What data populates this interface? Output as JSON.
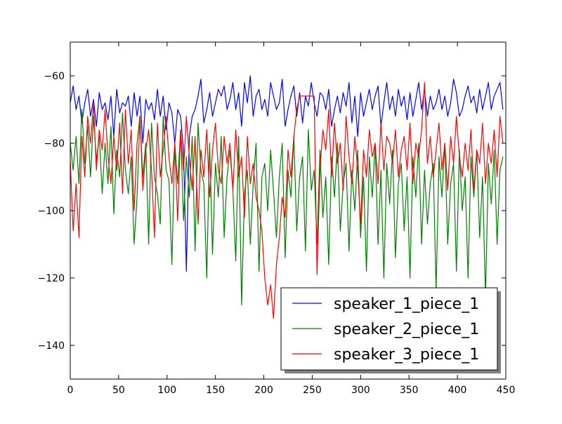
{
  "chart_data": {
    "type": "line",
    "title": "",
    "xlabel": "",
    "ylabel": "",
    "xlim": [
      0,
      450
    ],
    "ylim": [
      -150,
      -50
    ],
    "xticks": [
      0,
      50,
      100,
      150,
      200,
      250,
      300,
      350,
      400,
      450
    ],
    "yticks": [
      -60,
      -80,
      -100,
      -120,
      -140
    ],
    "xtick_labels": [
      "0",
      "50",
      "100",
      "150",
      "200",
      "250",
      "300",
      "350",
      "400",
      "450"
    ],
    "ytick_labels": [
      "−60",
      "−80",
      "−100",
      "−120",
      "−140"
    ],
    "grid": false,
    "legend_position": "lower-right",
    "series": [
      {
        "name": "speaker_1_piece_1",
        "color": "#0000ff",
        "x": [
          0,
          3,
          6,
          9,
          12,
          15,
          18,
          21,
          24,
          27,
          30,
          33,
          36,
          39,
          42,
          45,
          48,
          51,
          54,
          57,
          60,
          63,
          66,
          69,
          72,
          75,
          78,
          81,
          84,
          87,
          90,
          93,
          96,
          99,
          102,
          105,
          108,
          111,
          114,
          117,
          120,
          123,
          126,
          129,
          132,
          135,
          138,
          141,
          144,
          147,
          150,
          153,
          156,
          159,
          162,
          165,
          168,
          171,
          174,
          177,
          180,
          183,
          186,
          189,
          192,
          195,
          198,
          201,
          204,
          207,
          210,
          213,
          216,
          219,
          222,
          225,
          228,
          231,
          234,
          237,
          240,
          243,
          246,
          249,
          252,
          255,
          258,
          261,
          264,
          267,
          270,
          273,
          276,
          279,
          282,
          285,
          288,
          291,
          294,
          297,
          300,
          303,
          306,
          309,
          312,
          315,
          318,
          321,
          324,
          327,
          330,
          333,
          336,
          339,
          342,
          345,
          348,
          351,
          354,
          357,
          360,
          363,
          366,
          369,
          372,
          375,
          378,
          381,
          384,
          387,
          390,
          393,
          396,
          399,
          402,
          405,
          408,
          411,
          414,
          417,
          420,
          423,
          426,
          429,
          432,
          435,
          438,
          441,
          444,
          447
        ],
        "y": [
          -68,
          -63,
          -70,
          -66,
          -74,
          -68,
          -64,
          -72,
          -67,
          -75,
          -65,
          -70,
          -68,
          -73,
          -66,
          -78,
          -64,
          -71,
          -68,
          -69,
          -66,
          -75,
          -65,
          -72,
          -66,
          -80,
          -67,
          -70,
          -68,
          -73,
          -64,
          -72,
          -66,
          -76,
          -68,
          -71,
          -80,
          -70,
          -72,
          -82,
          -118,
          -78,
          -72,
          -70,
          -66,
          -61,
          -74,
          -70,
          -65,
          -72,
          -68,
          -64,
          -66,
          -63,
          -70,
          -67,
          -62,
          -70,
          -65,
          -75,
          -62,
          -68,
          -60,
          -72,
          -66,
          -64,
          -70,
          -67,
          -72,
          -62,
          -66,
          -70,
          -68,
          -61,
          -75,
          -70,
          -66,
          -63,
          -72,
          -65,
          -74,
          -66,
          -69,
          -62,
          -68,
          -72,
          -65,
          -66,
          -70,
          -64,
          -75,
          -70,
          -66,
          -71,
          -65,
          -69,
          -62,
          -74,
          -66,
          -78,
          -65,
          -72,
          -68,
          -64,
          -70,
          -66,
          -63,
          -75,
          -68,
          -62,
          -70,
          -66,
          -72,
          -64,
          -69,
          -66,
          -73,
          -65,
          -72,
          -67,
          -62,
          -70,
          -64,
          -72,
          -66,
          -70,
          -68,
          -64,
          -70,
          -66,
          -72,
          -68,
          -61,
          -65,
          -72,
          -70,
          -66,
          -63,
          -68,
          -66,
          -71,
          -64,
          -70,
          -66,
          -62,
          -70,
          -66,
          -64,
          -62,
          -70
        ]
      },
      {
        "name": "speaker_2_piece_1",
        "color": "#008000",
        "x": [
          0,
          3,
          6,
          9,
          12,
          15,
          18,
          21,
          24,
          27,
          30,
          33,
          36,
          39,
          42,
          45,
          48,
          51,
          54,
          57,
          60,
          63,
          66,
          69,
          72,
          75,
          78,
          81,
          84,
          87,
          90,
          93,
          96,
          99,
          102,
          105,
          108,
          111,
          114,
          117,
          120,
          123,
          126,
          129,
          132,
          135,
          138,
          141,
          144,
          147,
          150,
          153,
          156,
          159,
          162,
          165,
          168,
          171,
          174,
          177,
          180,
          183,
          186,
          189,
          192,
          195,
          198,
          201,
          204,
          207,
          210,
          213,
          216,
          219,
          222,
          225,
          228,
          231,
          234,
          237,
          240,
          243,
          246,
          249,
          252,
          255,
          258,
          261,
          264,
          267,
          270,
          273,
          276,
          279,
          282,
          285,
          288,
          291,
          294,
          297,
          300,
          303,
          306,
          309,
          312,
          315,
          318,
          321,
          324,
          327,
          330,
          333,
          336,
          339,
          342,
          345,
          348,
          351,
          354,
          357,
          360,
          363,
          366,
          369,
          372,
          375,
          378,
          381,
          384,
          387,
          390,
          393,
          396,
          399,
          402,
          405,
          408,
          411,
          414,
          417,
          420,
          423,
          426,
          429,
          432,
          435,
          438,
          441,
          444,
          447
        ],
        "y": [
          -80,
          -88,
          -78,
          -92,
          -70,
          -86,
          -75,
          -90,
          -72,
          -85,
          -78,
          -95,
          -80,
          -92,
          -75,
          -101,
          -82,
          -90,
          -71,
          -88,
          -95,
          -84,
          -110,
          -96,
          -72,
          -90,
          -80,
          -110,
          -74,
          -90,
          -95,
          -104,
          -72,
          -88,
          -91,
          -116,
          -80,
          -92,
          -76,
          -103,
          -84,
          -96,
          -78,
          -112,
          -74,
          -88,
          -92,
          -120,
          -80,
          -113,
          -86,
          -96,
          -78,
          -108,
          -90,
          -82,
          -94,
          -115,
          -78,
          -128,
          -95,
          -88,
          -110,
          -92,
          -80,
          -118,
          -90,
          -86,
          -100,
          -82,
          -94,
          -108,
          -90,
          -80,
          -114,
          -88,
          -96,
          -78,
          -106,
          -90,
          -84,
          -112,
          -76,
          -94,
          -88,
          -110,
          -82,
          -102,
          -90,
          -116,
          -84,
          -96,
          -80,
          -106,
          -92,
          -86,
          -112,
          -88,
          -100,
          -82,
          -108,
          -90,
          -118,
          -84,
          -96,
          -80,
          -110,
          -88,
          -120,
          -86,
          -98,
          -82,
          -114,
          -92,
          -86,
          -106,
          -90,
          -120,
          -84,
          -96,
          -80,
          -110,
          -88,
          -104,
          -92,
          -86,
          -124,
          -84,
          -96,
          -80,
          -110,
          -92,
          -86,
          -118,
          -82,
          -100,
          -90,
          -120,
          -84,
          -96,
          -82,
          -108,
          -90,
          -126,
          -86,
          -98,
          -82,
          -110,
          -88,
          -84
        ]
      },
      {
        "name": "speaker_3_piece_1",
        "color": "#ff0000",
        "x": [
          0,
          3,
          6,
          9,
          12,
          15,
          18,
          21,
          24,
          27,
          30,
          33,
          36,
          39,
          42,
          45,
          48,
          51,
          54,
          57,
          60,
          63,
          66,
          69,
          72,
          75,
          78,
          81,
          84,
          87,
          90,
          93,
          96,
          99,
          102,
          105,
          108,
          111,
          114,
          117,
          120,
          123,
          126,
          129,
          132,
          135,
          138,
          141,
          144,
          147,
          150,
          153,
          156,
          159,
          162,
          165,
          168,
          171,
          174,
          177,
          180,
          183,
          186,
          189,
          192,
          195,
          198,
          201,
          204,
          207,
          210,
          213,
          216,
          219,
          222,
          225,
          228,
          231,
          234,
          237,
          240,
          243,
          246,
          249,
          252,
          255,
          258,
          261,
          264,
          267,
          270,
          273,
          276,
          279,
          282,
          285,
          288,
          291,
          294,
          297,
          300,
          303,
          306,
          309,
          312,
          315,
          318,
          321,
          324,
          327,
          330,
          333,
          336,
          339,
          342,
          345,
          348,
          351,
          354,
          357,
          360,
          363,
          366,
          369,
          372,
          375,
          378,
          381,
          384,
          387,
          390,
          393,
          396,
          399,
          402,
          405,
          408,
          411,
          414,
          417,
          420,
          423,
          426,
          429,
          432,
          435,
          438,
          441,
          444,
          447
        ],
        "y": [
          -85,
          -106,
          -92,
          -108,
          -78,
          -90,
          -72,
          -80,
          -68,
          -88,
          -76,
          -82,
          -70,
          -84,
          -92,
          -78,
          -88,
          -74,
          -95,
          -70,
          -86,
          -76,
          -100,
          -80,
          -72,
          -94,
          -82,
          -76,
          -88,
          -108,
          -74,
          -90,
          -82,
          -72,
          -84,
          -92,
          -80,
          -103,
          -76,
          -88,
          -72,
          -84,
          -94,
          -78,
          -104,
          -82,
          -90,
          -76,
          -96,
          -82,
          -74,
          -88,
          -92,
          -78,
          -86,
          -80,
          -94,
          -76,
          -90,
          -84,
          -102,
          -78,
          -92,
          -86,
          -96,
          -100,
          -106,
          -120,
          -128,
          -122,
          -132,
          -116,
          -108,
          -96,
          -102,
          -82,
          -90,
          -78,
          -70,
          -66,
          -66,
          -66,
          -66,
          -66,
          -66,
          -119,
          -88,
          -76,
          -82,
          -70,
          -90,
          -74,
          -86,
          -80,
          -94,
          -72,
          -84,
          -92,
          -78,
          -88,
          -104,
          -82,
          -90,
          -76,
          -84,
          -80,
          -92,
          -74,
          -88,
          -78,
          -80,
          -86,
          -76,
          -90,
          -82,
          -78,
          -88,
          -74,
          -92,
          -80,
          -84,
          -76,
          -62,
          -86,
          -78,
          -90,
          -82,
          -74,
          -88,
          -80,
          -94,
          -78,
          -86,
          -72,
          -84,
          -90,
          -80,
          -88,
          -76,
          -94,
          -82,
          -86,
          -74,
          -92,
          -80,
          -86,
          -76,
          -90,
          -72,
          -80
        ]
      }
    ]
  }
}
